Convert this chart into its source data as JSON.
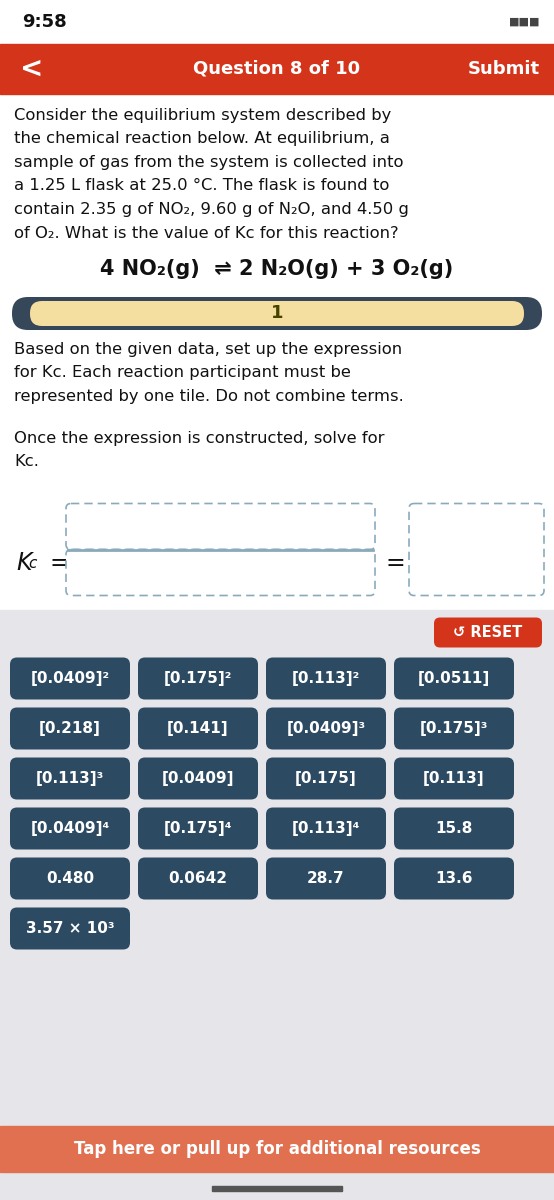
{
  "time": "9:58",
  "header_bg": "#d4341a",
  "header_text": "Question 8 of 10",
  "header_submit": "Submit",
  "body_bg": "#ffffff",
  "question_text": "Consider the equilibrium system described by\nthe chemical reaction below. At equilibrium, a\nsample of gas from the system is collected into\na 1.25 L flask at 25.0 °C. The flask is found to\ncontain 2.35 g of NO₂, 9.60 g of N₂O, and 4.50 g\nof O₂. What is the value of Kc for this reaction?",
  "reaction": "4 NO₂(g)  ⇌ 2 N₂O(g) + 3 O₂(g)",
  "slider_bg": "#37475a",
  "slider_fill": "#f5dfA0",
  "slider_val": "1",
  "instruction1": "Based on the given data, set up the expression\nfor Kc. Each reaction participant must be\nrepresented by one tile. Do not combine terms.",
  "instruction2": "Once the expression is constructed, solve for\nKc.",
  "tiles_bg": "#e5e5ea",
  "tile_color": "#2d4a63",
  "tile_text_color": "#ffffff",
  "reset_bg": "#d4341a",
  "reset_text": "↺ RESET",
  "tiles": [
    [
      "[0.0409]²",
      "[0.175]²",
      "[0.113]²",
      "[0.0511]"
    ],
    [
      "[0.218]",
      "[0.141]",
      "[0.0409]³",
      "[0.175]³"
    ],
    [
      "[0.113]³",
      "[0.0409]",
      "[0.175]",
      "[0.113]"
    ],
    [
      "[0.0409]⁴",
      "[0.175]⁴",
      "[0.113]⁴",
      "15.8"
    ],
    [
      "0.480",
      "0.0642",
      "28.7",
      "13.6"
    ],
    [
      "3.57 × 10³",
      null,
      null,
      null
    ]
  ],
  "bottom_bar_bg": "#e07050",
  "bottom_bar_text": "Tap here or pull up for additional resources",
  "dot_color": "#8aaabb",
  "fraction_line_color": "#8aaabb"
}
